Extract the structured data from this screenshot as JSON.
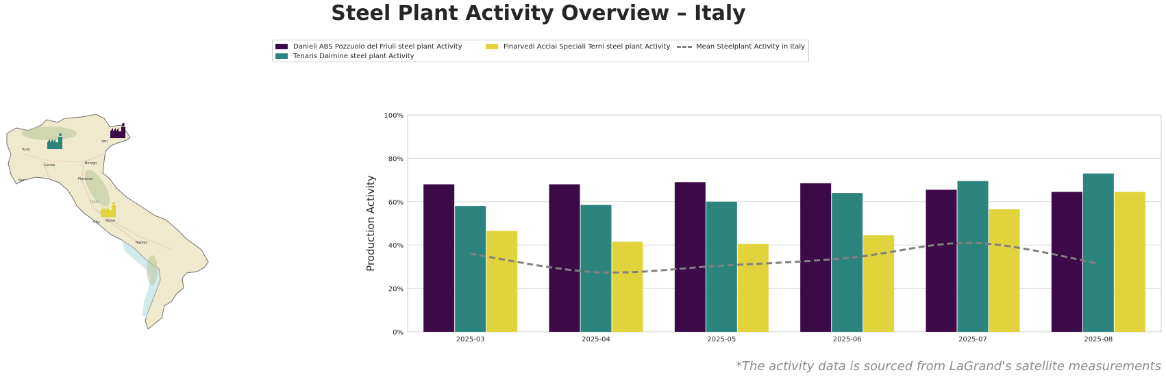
{
  "title": "Steel Plant Activity Overview – Italy",
  "footnote": "*The activity data is sourced from LaGrand's satellite measurements",
  "legend": {
    "items": [
      {
        "label": "Danieli ABS Pozzuolo del Friuli steel plant Activity",
        "color": "#3b0a47",
        "kind": "bar"
      },
      {
        "label": "Tenaris Dalmine steel plant Activity",
        "color": "#2b847e",
        "kind": "bar"
      },
      {
        "label": "Finarvedi Acciai Speciali Terni steel plant Activity",
        "color": "#e1d33b",
        "kind": "bar"
      },
      {
        "label": "Mean Steelplant Activity in Italy",
        "color": "#808080",
        "kind": "dashed-line"
      }
    ]
  },
  "map": {
    "labels": [
      "Turin",
      "Genoa",
      "Bologn",
      "Florence",
      "ITALY",
      "Rome",
      "City",
      "Naples",
      "Ven",
      "Nor"
    ],
    "icons": [
      {
        "name": "factory-icon-danieli",
        "color": "#3b0a47"
      },
      {
        "name": "factory-icon-tenaris",
        "color": "#2b847e"
      },
      {
        "name": "factory-icon-finarvedi",
        "color": "#e1d33b"
      }
    ]
  },
  "chart_data": {
    "type": "bar",
    "categories": [
      "2025-03",
      "2025-04",
      "2025-05",
      "2025-06",
      "2025-07",
      "2025-08"
    ],
    "series": [
      {
        "name": "Danieli ABS Pozzuolo del Friuli steel plant Activity",
        "color": "#3b0a47",
        "values": [
          68,
          68,
          69,
          68.5,
          65.5,
          64.5
        ]
      },
      {
        "name": "Tenaris Dalmine steel plant Activity",
        "color": "#2b847e",
        "values": [
          58,
          58.5,
          60,
          64,
          69.5,
          73
        ]
      },
      {
        "name": "Finarvedi Acciai Speciali Terni steel plant Activity",
        "color": "#e1d33b",
        "values": [
          46.5,
          41.5,
          40.5,
          44.5,
          56.5,
          64.5
        ]
      }
    ],
    "line": {
      "name": "Mean Steelplant Activity in Italy",
      "color": "#808080",
      "style": "dashed",
      "values": [
        36,
        27.5,
        30.5,
        34,
        41,
        31.5
      ]
    },
    "xlabel": "",
    "ylabel": "Production Activity",
    "ylim": [
      0,
      100
    ],
    "yticks": [
      0,
      20,
      40,
      60,
      80,
      100
    ],
    "ytick_labels": [
      "0%",
      "20%",
      "40%",
      "60%",
      "80%",
      "100%"
    ],
    "grid": true,
    "legend_position": "top-center"
  }
}
